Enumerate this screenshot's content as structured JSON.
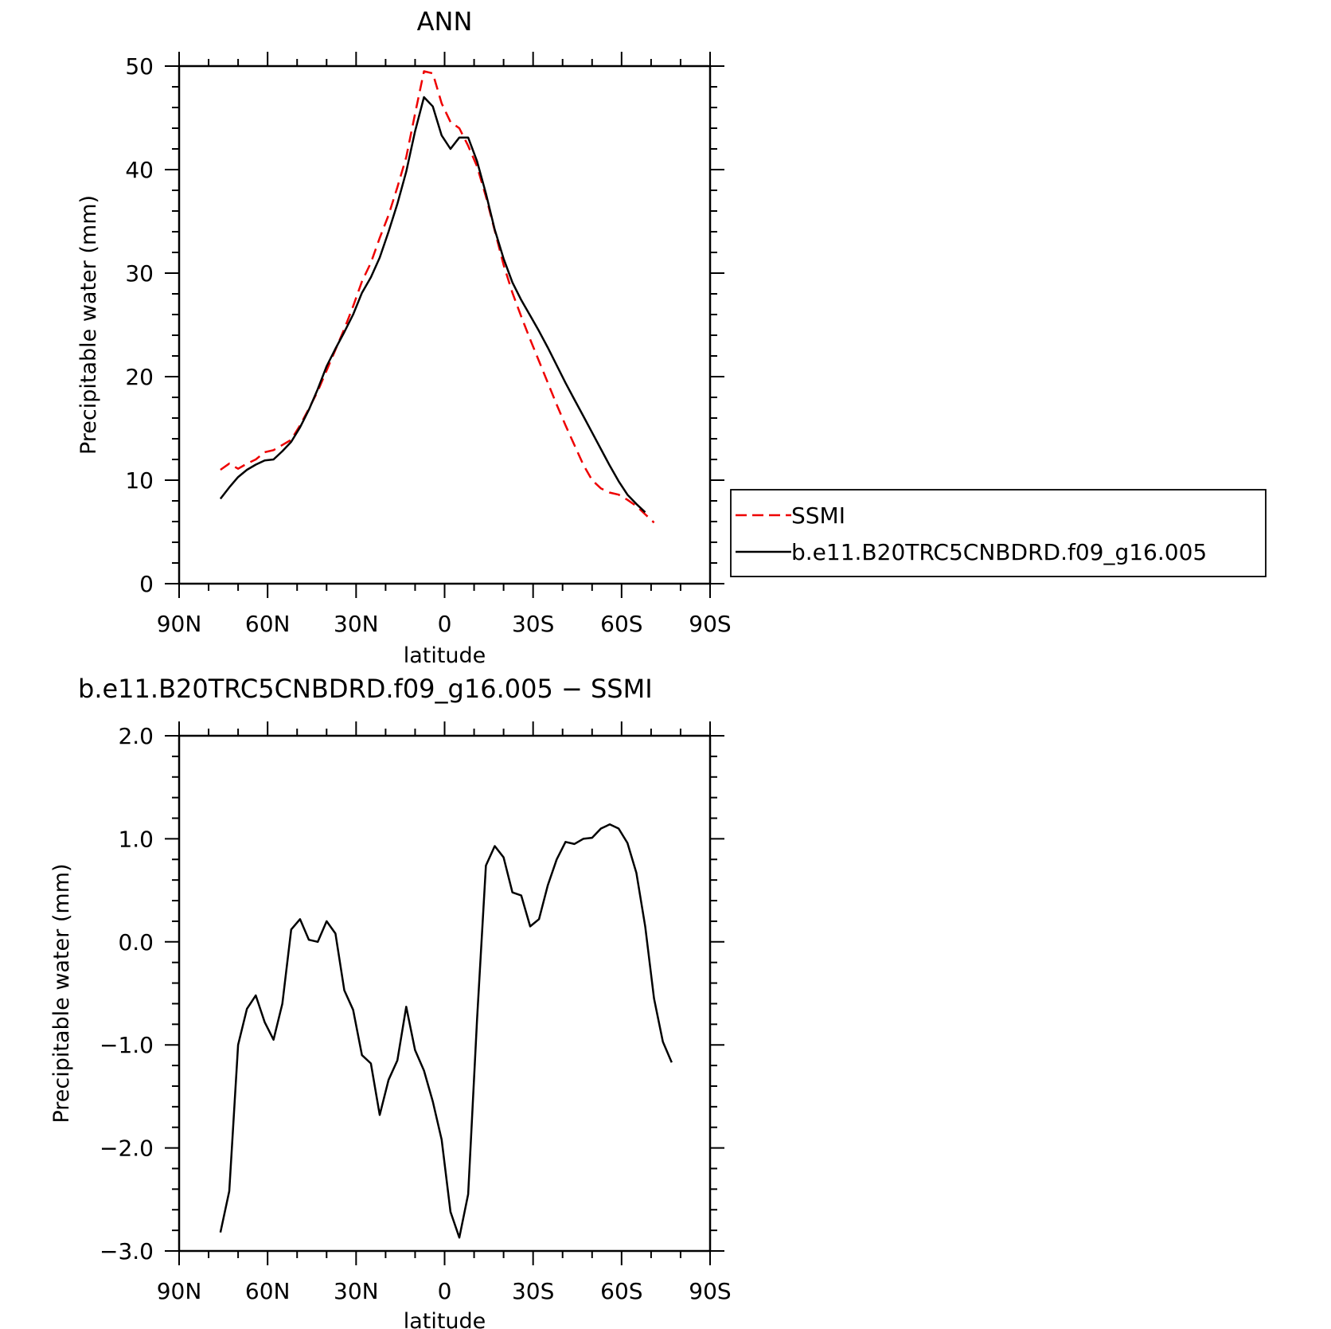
{
  "chart_data": [
    {
      "type": "line",
      "title": "ANN",
      "xlabel": "latitude",
      "ylabel": "Precipitable water (mm)",
      "xlim": [
        90,
        -90
      ],
      "ylim": [
        0,
        50
      ],
      "x_ticks": [
        90,
        60,
        30,
        0,
        -30,
        -60,
        -90
      ],
      "x_tick_labels": [
        "90N",
        "60N",
        "30N",
        "0",
        "30S",
        "60S",
        "90S"
      ],
      "y_ticks": [
        0,
        10,
        20,
        30,
        40,
        50
      ],
      "y_tick_labels": [
        "0",
        "10",
        "20",
        "30",
        "40",
        "50"
      ],
      "legend_position": "right",
      "series": [
        {
          "name": "SSMI",
          "color": "#ee0000",
          "dashed": true,
          "points": [
            [
              76,
              11.0
            ],
            [
              73,
              11.6
            ],
            [
              70,
              11.1
            ],
            [
              67,
              11.6
            ],
            [
              64,
              12.0
            ],
            [
              61,
              12.7
            ],
            [
              58,
              12.9
            ],
            [
              55,
              13.4
            ],
            [
              52,
              13.9
            ],
            [
              49,
              15.3
            ],
            [
              46,
              16.9
            ],
            [
              43,
              18.6
            ],
            [
              40,
              20.6
            ],
            [
              37,
              22.6
            ],
            [
              34,
              24.6
            ],
            [
              31,
              26.8
            ],
            [
              28,
              29.2
            ],
            [
              25,
              31.0
            ],
            [
              22,
              33.4
            ],
            [
              19,
              35.6
            ],
            [
              16,
              38.3
            ],
            [
              13,
              41.2
            ],
            [
              10,
              45.4
            ],
            [
              7,
              49.5
            ],
            [
              4,
              49.3
            ],
            [
              1,
              46.4
            ],
            [
              -2,
              44.6
            ],
            [
              -5,
              44.0
            ],
            [
              -8,
              42.3
            ],
            [
              -11,
              40.3
            ],
            [
              -14,
              37.4
            ],
            [
              -17,
              34.1
            ],
            [
              -20,
              30.8
            ],
            [
              -23,
              28.1
            ],
            [
              -26,
              25.8
            ],
            [
              -29,
              23.6
            ],
            [
              -32,
              21.5
            ],
            [
              -35,
              19.4
            ],
            [
              -38,
              17.3
            ],
            [
              -41,
              15.3
            ],
            [
              -44,
              13.4
            ],
            [
              -47,
              11.5
            ],
            [
              -50,
              10.0
            ],
            [
              -53,
              9.2
            ],
            [
              -56,
              8.8
            ],
            [
              -59,
              8.6
            ],
            [
              -62,
              8.1
            ],
            [
              -65,
              7.5
            ],
            [
              -68,
              6.7
            ],
            [
              -71,
              5.9
            ]
          ]
        },
        {
          "name": "b.e11.B20TRC5CNBDRD.f09_g16.005",
          "color": "#000000",
          "dashed": false,
          "points": [
            [
              76,
              8.2
            ],
            [
              73,
              9.3
            ],
            [
              70,
              10.3
            ],
            [
              67,
              11.0
            ],
            [
              64,
              11.5
            ],
            [
              61,
              11.9
            ],
            [
              58,
              12.0
            ],
            [
              55,
              12.8
            ],
            [
              52,
              13.7
            ],
            [
              49,
              15.1
            ],
            [
              46,
              16.8
            ],
            [
              43,
              18.8
            ],
            [
              40,
              21.0
            ],
            [
              37,
              22.7
            ],
            [
              34,
              24.3
            ],
            [
              31,
              26.0
            ],
            [
              28,
              28.1
            ],
            [
              25,
              29.6
            ],
            [
              22,
              31.5
            ],
            [
              19,
              34.0
            ],
            [
              16,
              36.7
            ],
            [
              13,
              39.8
            ],
            [
              10,
              43.7
            ],
            [
              7,
              47.0
            ],
            [
              4,
              46.1
            ],
            [
              1,
              43.3
            ],
            [
              -2,
              42.0
            ],
            [
              -5,
              43.1
            ],
            [
              -8,
              43.1
            ],
            [
              -11,
              40.8
            ],
            [
              -14,
              37.7
            ],
            [
              -17,
              34.2
            ],
            [
              -20,
              31.4
            ],
            [
              -23,
              29.1
            ],
            [
              -26,
              27.4
            ],
            [
              -29,
              25.9
            ],
            [
              -32,
              24.4
            ],
            [
              -35,
              22.8
            ],
            [
              -38,
              21.1
            ],
            [
              -41,
              19.4
            ],
            [
              -44,
              17.8
            ],
            [
              -47,
              16.2
            ],
            [
              -50,
              14.6
            ],
            [
              -53,
              13.0
            ],
            [
              -56,
              11.4
            ],
            [
              -59,
              9.9
            ],
            [
              -62,
              8.6
            ],
            [
              -65,
              7.7
            ],
            [
              -68,
              6.9
            ]
          ]
        }
      ]
    },
    {
      "type": "line",
      "title": "b.e11.B20TRC5CNBDRD.f09_g16.005 − SSMI",
      "xlabel": "latitude",
      "ylabel": "Precipitable water (mm)",
      "xlim": [
        90,
        -90
      ],
      "ylim": [
        -3,
        2
      ],
      "x_ticks": [
        90,
        60,
        30,
        0,
        -30,
        -60,
        -90
      ],
      "x_tick_labels": [
        "90N",
        "60N",
        "30N",
        "0",
        "30S",
        "60S",
        "90S"
      ],
      "y_ticks": [
        -3,
        -2,
        -1,
        0,
        1,
        2
      ],
      "y_tick_labels": [
        "−3.0",
        "−2.0",
        "−1.0",
        "0.0",
        "1.0",
        "2.0"
      ],
      "series": [
        {
          "color": "#000000",
          "dashed": false,
          "points": [
            [
              76,
              -2.82
            ],
            [
              73,
              -2.42
            ],
            [
              70,
              -1.0
            ],
            [
              67,
              -0.65
            ],
            [
              64,
              -0.52
            ],
            [
              61,
              -0.78
            ],
            [
              58,
              -0.95
            ],
            [
              55,
              -0.6
            ],
            [
              52,
              0.12
            ],
            [
              49,
              0.22
            ],
            [
              46,
              0.02
            ],
            [
              43,
              0.0
            ],
            [
              40,
              0.2
            ],
            [
              37,
              0.08
            ],
            [
              34,
              -0.47
            ],
            [
              31,
              -0.66
            ],
            [
              28,
              -1.1
            ],
            [
              25,
              -1.18
            ],
            [
              22,
              -1.68
            ],
            [
              19,
              -1.34
            ],
            [
              16,
              -1.15
            ],
            [
              13,
              -0.63
            ],
            [
              10,
              -1.05
            ],
            [
              7,
              -1.25
            ],
            [
              4,
              -1.55
            ],
            [
              1,
              -1.92
            ],
            [
              -2,
              -2.62
            ],
            [
              -5,
              -2.87
            ],
            [
              -8,
              -2.45
            ],
            [
              -11,
              -0.75
            ],
            [
              -14,
              0.74
            ],
            [
              -17,
              0.93
            ],
            [
              -20,
              0.82
            ],
            [
              -23,
              0.48
            ],
            [
              -26,
              0.45
            ],
            [
              -29,
              0.15
            ],
            [
              -32,
              0.22
            ],
            [
              -35,
              0.55
            ],
            [
              -38,
              0.8
            ],
            [
              -41,
              0.97
            ],
            [
              -44,
              0.95
            ],
            [
              -47,
              1.0
            ],
            [
              -50,
              1.01
            ],
            [
              -53,
              1.1
            ],
            [
              -56,
              1.14
            ],
            [
              -59,
              1.1
            ],
            [
              -62,
              0.96
            ],
            [
              -65,
              0.67
            ],
            [
              -68,
              0.15
            ],
            [
              -71,
              -0.55
            ],
            [
              -74,
              -0.97
            ],
            [
              -77,
              -1.17
            ]
          ]
        }
      ]
    }
  ]
}
